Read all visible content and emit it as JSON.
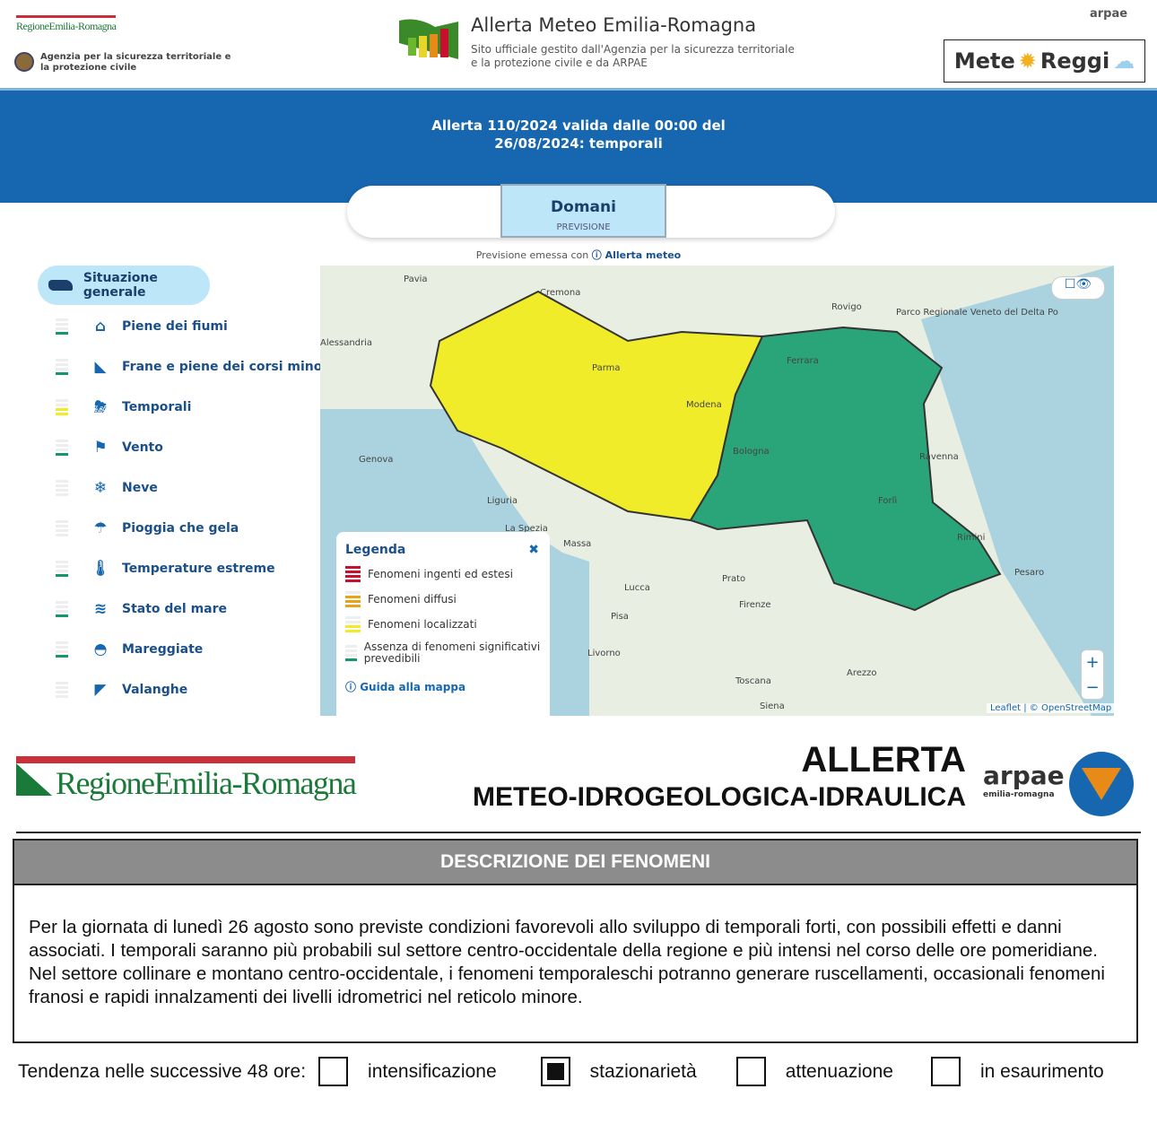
{
  "header": {
    "region_logo": "RegioneEmilia-Romagna",
    "agency": "Agenzia per la sicurezza territoriale e la protezione civile",
    "title": "Allerta Meteo Emilia-Romagna",
    "subtitle": "Sito ufficiale gestito dall'Agenzia per la sicurezza territoriale e la protezione civile e da ARPAE",
    "arpae_logo": "arpae",
    "meteo_logo_a": "Mete",
    "meteo_logo_b": "Reggi"
  },
  "banner": {
    "line1": "Allerta 110/2024 valida dalle 00:00 del",
    "line2": "26/08/2024: temporali"
  },
  "tab": {
    "label": "Domani",
    "sub": "PREVISIONE"
  },
  "forecast_note": {
    "prefix": "Previsione emessa con",
    "link": "Allerta meteo"
  },
  "sidebar": {
    "active": "Situazione generale",
    "items": [
      {
        "label": "Piene dei fiumi",
        "icon": "flood-house-icon",
        "level": "green"
      },
      {
        "label": "Frane e piene dei corsi minori",
        "icon": "landslide-icon",
        "level": "green"
      },
      {
        "label": "Temporali",
        "icon": "thunderstorm-icon",
        "level": "yellow"
      },
      {
        "label": "Vento",
        "icon": "windsock-icon",
        "level": "green"
      },
      {
        "label": "Neve",
        "icon": "snow-cloud-icon",
        "level": "none"
      },
      {
        "label": "Pioggia che gela",
        "icon": "freezing-rain-icon",
        "level": "none"
      },
      {
        "label": "Temperature estreme",
        "icon": "thermometer-icon",
        "level": "green"
      },
      {
        "label": "Stato del mare",
        "icon": "waves-icon",
        "level": "green"
      },
      {
        "label": "Mareggiate",
        "icon": "storm-surge-icon",
        "level": "green"
      },
      {
        "label": "Valanghe",
        "icon": "avalanche-icon",
        "level": "none"
      }
    ]
  },
  "colors": {
    "green": "#13976b",
    "yellow": "#f0ec2a",
    "orange": "#e8a317",
    "red": "#c8102e",
    "blue": "#1667b0"
  },
  "map": {
    "cities": [
      "Pavia",
      "Cremona",
      "Rovigo",
      "Alessandria",
      "Parma",
      "Modena",
      "Ferrara",
      "Bologna",
      "Ravenna",
      "Forlì",
      "Rimini",
      "Genova",
      "Liguria",
      "La Spezia",
      "Massa",
      "Lucca",
      "Prato",
      "Firenze",
      "Pisa",
      "Livorno",
      "Arezzo",
      "Toscana",
      "Siena",
      "Pesaro",
      "Parco Regionale Veneto del Delta Po"
    ],
    "attribution_a": "Leaflet",
    "attribution_b": "© OpenStreetMap",
    "zoom_in": "+",
    "zoom_out": "−"
  },
  "legend": {
    "title": "Legenda",
    "items": [
      "Fenomeni ingenti ed estesi",
      "Fenomeni diffusi",
      "Fenomeni localizzati",
      "Assenza di fenomeni significativi prevedibili"
    ],
    "guide": "Guida alla mappa"
  },
  "bulletin": {
    "title1": "ALLERTA",
    "title2": "METEO-IDROGEOLOGICA-IDRAULICA",
    "region": "RegioneEmilia-Romagna",
    "arpae": "arpae",
    "arpae_sub": "emilia-romagna",
    "pc_seal": "SICUREZZA TERRITORIALE PROTEZIONE CIVILE",
    "section": "DESCRIZIONE DEI FENOMENI",
    "text": "Per la giornata di lunedì 26 agosto sono previste condizioni favorevoli allo sviluppo di temporali forti, con possibili effetti e danni associati. I temporali saranno più probabili sul settore centro-occidentale della regione e più intensi nel corso delle ore pomeridiane. Nel settore collinare e montano centro-occidentale, i fenomeni temporaleschi potranno generare ruscellamenti, occasionali fenomeni franosi e rapidi innalzamenti dei livelli idrometrici nel reticolo minore.",
    "trend_label": "Tendenza nelle successive 48 ore:",
    "trend_options": [
      {
        "label": "intensificazione",
        "checked": false
      },
      {
        "label": "stazionarietà",
        "checked": true
      },
      {
        "label": "attenuazione",
        "checked": false
      },
      {
        "label": "in esaurimento",
        "checked": false
      }
    ]
  }
}
